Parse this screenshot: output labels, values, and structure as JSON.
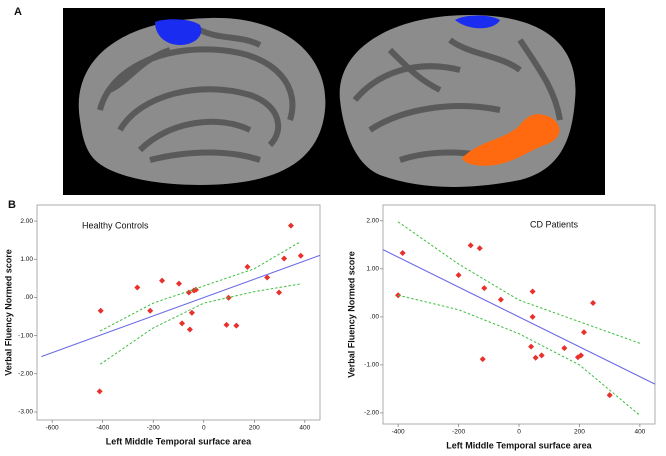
{
  "panel_labels": [
    "A",
    "B"
  ],
  "chart_data": [
    {
      "type": "scatter",
      "annotation": "Healthy Controls",
      "xlabel": "Left Middle Temporal surface area",
      "ylabel": "Verbal Fluency Normed score",
      "xlim": [
        -660,
        460
      ],
      "ylim": [
        -3.21,
        2.42
      ],
      "xticks": [
        -600,
        -400,
        -200,
        0,
        200,
        400
      ],
      "yticks": [
        {
          "value": 2,
          "label": "2.00"
        },
        {
          "value": 1,
          "label": "1.00"
        },
        {
          "value": 0,
          "label": ".00"
        },
        {
          "value": -1,
          "label": "-1.00"
        },
        {
          "value": -2,
          "label": "-2.00"
        },
        {
          "value": -3,
          "label": "-3.00"
        }
      ],
      "series": [
        {
          "kind": "points",
          "color": "#e8312c",
          "x": [
            -412,
            -408,
            -263,
            -212,
            -165,
            -98,
            -86,
            -59,
            -55,
            -47,
            -39,
            -31,
            90,
            98,
            129,
            173,
            251,
            298,
            318,
            345,
            384
          ],
          "values": [
            -2.46,
            -0.35,
            0.26,
            -0.35,
            0.44,
            0.36,
            -0.68,
            0.13,
            -0.84,
            -0.4,
            0.18,
            0.2,
            -0.72,
            -0.01,
            -0.74,
            0.8,
            0.52,
            0.13,
            1.02,
            1.88,
            1.09
          ]
        },
        {
          "kind": "line",
          "color": "#6b6be6",
          "x": [
            -643,
            467
          ],
          "values": [
            -1.55,
            1.12
          ]
        },
        {
          "kind": "line",
          "dashed": true,
          "color": "#3cbf3c",
          "x": [
            -410,
            -200,
            0,
            200,
            380
          ],
          "values": [
            -0.88,
            -0.15,
            0.3,
            0.75,
            1.45
          ]
        },
        {
          "kind": "line",
          "dashed": true,
          "color": "#3cbf3c",
          "x": [
            -410,
            -200,
            0,
            200,
            380
          ],
          "values": [
            -1.75,
            -0.8,
            -0.15,
            0.15,
            0.35
          ]
        }
      ]
    },
    {
      "type": "scatter",
      "annotation": "CD Patients",
      "xlabel": "Left Middle Temporal surface area",
      "ylabel": "Verbal Fluency Normed score",
      "xlim": [
        -450,
        450
      ],
      "ylim": [
        -2.23,
        2.33
      ],
      "xticks": [
        -400,
        -200,
        0,
        200,
        400
      ],
      "yticks": [
        {
          "value": 2,
          "label": "2.00"
        },
        {
          "value": 1,
          "label": "1.00"
        },
        {
          "value": 0,
          "label": ".00"
        },
        {
          "value": -1,
          "label": "-1.00"
        },
        {
          "value": -2,
          "label": "-2.00"
        }
      ],
      "series": [
        {
          "kind": "points",
          "color": "#e8312c",
          "x": [
            -385,
            -400,
            -200,
            -160,
            -130,
            -115,
            -120,
            -60,
            45,
            45,
            40,
            55,
            75,
            150,
            195,
            205,
            215,
            245,
            300
          ],
          "values": [
            1.33,
            0.45,
            0.87,
            1.49,
            1.43,
            0.6,
            -0.88,
            0.36,
            0.53,
            0.0,
            -0.62,
            -0.85,
            -0.8,
            -0.65,
            -0.84,
            -0.8,
            -0.32,
            0.29,
            -1.63
          ]
        },
        {
          "kind": "line",
          "color": "#6b6be6",
          "x": [
            -450,
            450
          ],
          "values": [
            1.4,
            -1.4
          ]
        },
        {
          "kind": "line",
          "dashed": true,
          "color": "#3cbf3c",
          "x": [
            -400,
            -200,
            0,
            200,
            400
          ],
          "values": [
            1.98,
            1.1,
            0.35,
            -0.1,
            -0.55
          ]
        },
        {
          "kind": "line",
          "dashed": true,
          "color": "#3cbf3c",
          "x": [
            -400,
            -200,
            0,
            200,
            400
          ],
          "values": [
            0.45,
            0.15,
            -0.35,
            -1.0,
            -2.05
          ]
        }
      ]
    }
  ]
}
